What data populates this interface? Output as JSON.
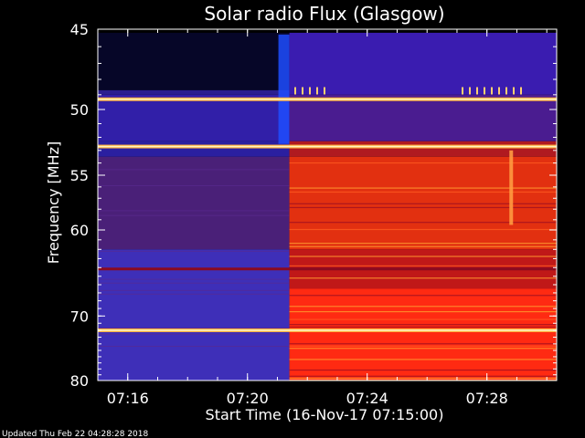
{
  "chart_data": {
    "type": "heatmap",
    "title": "Solar radio Flux (Glasgow)",
    "xlabel": "Start Time (16-Nov-17 07:15:00)",
    "ylabel": "Frequency [MHz]",
    "x_range_minutes": [
      0,
      15.33
    ],
    "x_ticks": [
      {
        "label": "07:16",
        "minutes": 1
      },
      {
        "label": "07:20",
        "minutes": 5
      },
      {
        "label": "07:24",
        "minutes": 9
      },
      {
        "label": "07:28",
        "minutes": 13
      }
    ],
    "ylim": [
      45,
      80
    ],
    "y_ticks": [
      45,
      50,
      55,
      60,
      70,
      80
    ],
    "y_scale": "log-like",
    "change_time_minutes": 6.4,
    "colormap": [
      "#000030",
      "#1a1aa0",
      "#3a2fc0",
      "#8a1a50",
      "#c01010",
      "#ff3010",
      "#ff8a20",
      "#ffe080"
    ],
    "emission_lines_mhz": [
      49.3,
      52.7,
      72.0
    ],
    "before_band_color": "#3b2fb5",
    "after_band_color": "#ff2a10"
  },
  "footer": {
    "updated": "Updated Thu Feb 22 04:28:28 2018"
  }
}
